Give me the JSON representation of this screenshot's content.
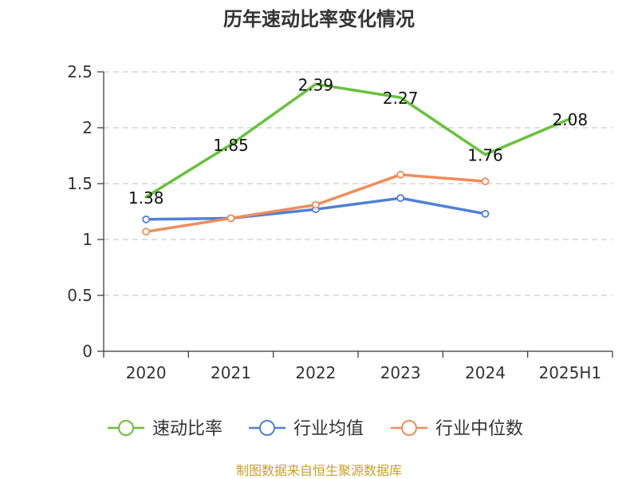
{
  "chart_data": {
    "type": "line",
    "title": "历年速动比率变化情况",
    "categories": [
      "2020",
      "2021",
      "2022",
      "2023",
      "2024",
      "2025H1"
    ],
    "ylim": [
      0,
      2.5
    ],
    "yticks": [
      "0",
      "0.5",
      "1",
      "1.5",
      "2",
      "2.5"
    ],
    "grid": true,
    "legend_position": "bottom",
    "series": [
      {
        "name": "速动比率",
        "color": "#67c23a",
        "values": [
          1.38,
          1.85,
          2.39,
          2.27,
          1.76,
          2.08
        ],
        "labels": [
          "1.38",
          "1.85",
          "2.39",
          "2.27",
          "1.76",
          "2.08"
        ]
      },
      {
        "name": "行业均值",
        "color": "#4f7fd9",
        "values": [
          1.18,
          1.19,
          1.27,
          1.37,
          1.23,
          null
        ]
      },
      {
        "name": "行业中位数",
        "color": "#f08c5a",
        "values": [
          1.07,
          1.19,
          1.31,
          1.58,
          1.52,
          null
        ]
      }
    ]
  },
  "source_text": "制图数据来自恒生聚源数据库"
}
